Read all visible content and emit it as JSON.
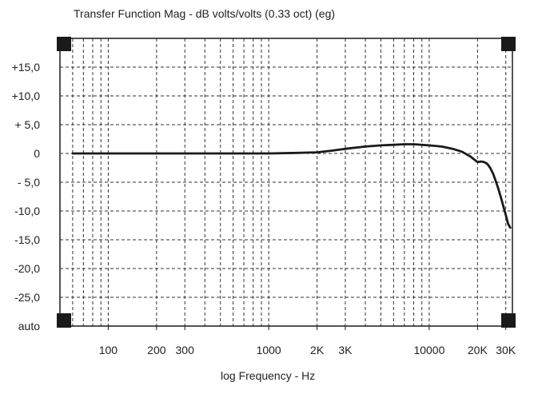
{
  "chart_data": {
    "type": "line",
    "title": "Transfer Function Mag - dB volts/volts (0.33 oct) (eg)",
    "xlabel": "log Frequency - Hz",
    "ylabel": "",
    "x_scale": "log",
    "xlim": [
      50,
      33000
    ],
    "ylim": [
      -30,
      20
    ],
    "grid": true,
    "legend": "none",
    "x_tick_labels": [
      {
        "value": 100,
        "label": "100"
      },
      {
        "value": 200,
        "label": "200"
      },
      {
        "value": 300,
        "label": "300"
      },
      {
        "value": 1000,
        "label": "1000"
      },
      {
        "value": 2000,
        "label": "2K"
      },
      {
        "value": 3000,
        "label": "3K"
      },
      {
        "value": 10000,
        "label": "10000"
      },
      {
        "value": 20000,
        "label": "20K"
      },
      {
        "value": 30000,
        "label": "30K"
      }
    ],
    "y_tick_labels": [
      {
        "value": 15,
        "label": "+15,0"
      },
      {
        "value": 10,
        "label": "+10,0"
      },
      {
        "value": 5,
        "label": "+ 5,0"
      },
      {
        "value": 0,
        "label": "0"
      },
      {
        "value": -5,
        "label": "- 5,0"
      },
      {
        "value": -10,
        "label": "-10,0"
      },
      {
        "value": -15,
        "label": "-15,0"
      },
      {
        "value": -20,
        "label": "-20,0"
      },
      {
        "value": -25,
        "label": "-25,0"
      },
      {
        "value": -30,
        "label": "auto"
      }
    ],
    "series": [
      {
        "color": "#1a1a1a",
        "x": [
          60,
          100,
          200,
          500,
          1000,
          1500,
          2000,
          2500,
          3000,
          4000,
          5000,
          6000,
          7000,
          8000,
          10000,
          12000,
          14000,
          16000,
          18000,
          20000,
          21000,
          22000,
          23000,
          24000,
          25000,
          26000,
          27000,
          28000,
          29000,
          30000,
          31000,
          32000
        ],
        "y": [
          0,
          0,
          0,
          0,
          0,
          0.1,
          0.2,
          0.5,
          0.8,
          1.2,
          1.4,
          1.5,
          1.6,
          1.6,
          1.4,
          1.2,
          0.8,
          0.3,
          -0.5,
          -1.5,
          -1.4,
          -1.5,
          -1.8,
          -2.5,
          -3.5,
          -4.8,
          -6.2,
          -7.7,
          -9.2,
          -10.7,
          -12.2,
          -12.9
        ]
      }
    ]
  },
  "colors": {
    "grid": "#333333",
    "frame": "#1a1a1a",
    "background": "#ffffff"
  }
}
